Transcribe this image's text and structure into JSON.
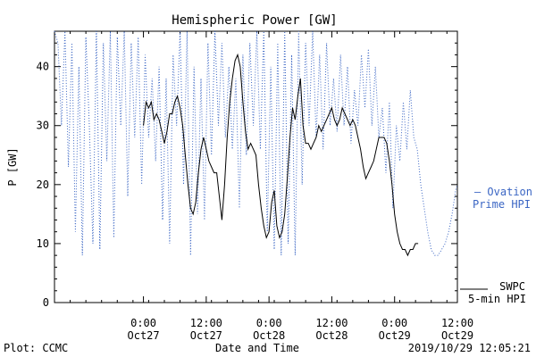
{
  "chart_data": {
    "type": "line",
    "title": "Hemispheric Power [GW]",
    "ylabel": "P [GW]",
    "xlabel": "Date and Time",
    "ylim": [
      0,
      46
    ],
    "xlim": [
      "2019-10-26 07:00",
      "2019-10-29 12:00"
    ],
    "y_ticks": [
      0,
      10,
      20,
      30,
      40
    ],
    "x_ticks": [
      {
        "t": "2019-10-27 00:00",
        "line1": "0:00",
        "line2": "Oct27"
      },
      {
        "t": "2019-10-27 12:00",
        "line1": "12:00",
        "line2": "Oct27"
      },
      {
        "t": "2019-10-28 00:00",
        "line1": "0:00",
        "line2": "Oct28"
      },
      {
        "t": "2019-10-28 12:00",
        "line1": "12:00",
        "line2": "Oct28"
      },
      {
        "t": "2019-10-29 00:00",
        "line1": "0:00",
        "line2": "Oct29"
      },
      {
        "t": "2019-10-29 12:00",
        "line1": "12:00",
        "line2": "Oct29"
      }
    ],
    "grid": false,
    "legend_placement": "right",
    "series": [
      {
        "name": "Ovation Prime HPI",
        "legend_line1": "— Ovation",
        "legend_line2": "Prime HPI",
        "style": "dotted",
        "color": "#3b66c4",
        "points": [
          [
            "2019-10-26 07:00",
            46
          ],
          [
            "2019-10-26 07:40",
            44
          ],
          [
            "2019-10-26 08:20",
            30
          ],
          [
            "2019-10-26 09:00",
            46
          ],
          [
            "2019-10-26 09:40",
            23
          ],
          [
            "2019-10-26 10:20",
            44
          ],
          [
            "2019-10-26 11:00",
            12
          ],
          [
            "2019-10-26 11:40",
            40
          ],
          [
            "2019-10-26 12:20",
            8
          ],
          [
            "2019-10-26 13:00",
            45
          ],
          [
            "2019-10-26 13:40",
            30
          ],
          [
            "2019-10-26 14:20",
            10
          ],
          [
            "2019-10-26 15:00",
            46
          ],
          [
            "2019-10-26 15:40",
            9
          ],
          [
            "2019-10-26 16:20",
            44
          ],
          [
            "2019-10-26 17:00",
            24
          ],
          [
            "2019-10-26 17:40",
            46
          ],
          [
            "2019-10-26 18:20",
            11
          ],
          [
            "2019-10-26 19:00",
            45
          ],
          [
            "2019-10-26 19:40",
            30
          ],
          [
            "2019-10-26 20:20",
            46
          ],
          [
            "2019-10-26 21:00",
            18
          ],
          [
            "2019-10-26 21:40",
            44
          ],
          [
            "2019-10-26 22:20",
            28
          ],
          [
            "2019-10-26 23:00",
            45
          ],
          [
            "2019-10-26 23:40",
            20
          ],
          [
            "2019-10-27 00:20",
            42
          ],
          [
            "2019-10-27 01:00",
            28
          ],
          [
            "2019-10-27 01:40",
            38
          ],
          [
            "2019-10-27 02:20",
            24
          ],
          [
            "2019-10-27 03:00",
            40
          ],
          [
            "2019-10-27 03:40",
            14
          ],
          [
            "2019-10-27 04:20",
            38
          ],
          [
            "2019-10-27 05:00",
            10
          ],
          [
            "2019-10-27 05:40",
            42
          ],
          [
            "2019-10-27 06:20",
            30
          ],
          [
            "2019-10-27 07:00",
            46
          ],
          [
            "2019-10-27 07:40",
            20
          ],
          [
            "2019-10-27 08:20",
            46
          ],
          [
            "2019-10-27 09:00",
            8
          ],
          [
            "2019-10-27 09:40",
            40
          ],
          [
            "2019-10-27 10:20",
            15
          ],
          [
            "2019-10-27 11:00",
            38
          ],
          [
            "2019-10-27 11:40",
            14
          ],
          [
            "2019-10-27 12:20",
            44
          ],
          [
            "2019-10-27 13:00",
            25
          ],
          [
            "2019-10-27 13:40",
            46
          ],
          [
            "2019-10-27 14:20",
            30
          ],
          [
            "2019-10-27 15:00",
            44
          ],
          [
            "2019-10-27 15:40",
            28
          ],
          [
            "2019-10-27 16:20",
            40
          ],
          [
            "2019-10-27 17:00",
            26
          ],
          [
            "2019-10-27 17:40",
            38
          ],
          [
            "2019-10-27 18:20",
            16
          ],
          [
            "2019-10-27 19:00",
            42
          ],
          [
            "2019-10-27 19:40",
            25
          ],
          [
            "2019-10-27 20:20",
            44
          ],
          [
            "2019-10-27 21:00",
            30
          ],
          [
            "2019-10-27 21:40",
            46
          ],
          [
            "2019-10-27 22:20",
            26
          ],
          [
            "2019-10-27 23:00",
            46
          ],
          [
            "2019-10-27 23:40",
            12
          ],
          [
            "2019-10-28 00:20",
            40
          ],
          [
            "2019-10-28 01:00",
            9
          ],
          [
            "2019-10-28 01:40",
            44
          ],
          [
            "2019-10-28 02:20",
            8
          ],
          [
            "2019-10-28 03:00",
            46
          ],
          [
            "2019-10-28 03:40",
            10
          ],
          [
            "2019-10-28 04:20",
            42
          ],
          [
            "2019-10-28 05:00",
            8
          ],
          [
            "2019-10-28 05:40",
            46
          ],
          [
            "2019-10-28 06:20",
            20
          ],
          [
            "2019-10-28 07:00",
            44
          ],
          [
            "2019-10-28 07:40",
            30
          ],
          [
            "2019-10-28 08:20",
            46
          ],
          [
            "2019-10-28 09:00",
            28
          ],
          [
            "2019-10-28 09:40",
            42
          ],
          [
            "2019-10-28 10:20",
            26
          ],
          [
            "2019-10-28 11:00",
            44
          ],
          [
            "2019-10-28 11:40",
            30
          ],
          [
            "2019-10-28 12:20",
            38
          ],
          [
            "2019-10-28 13:00",
            29
          ],
          [
            "2019-10-28 13:40",
            42
          ],
          [
            "2019-10-28 14:20",
            30
          ],
          [
            "2019-10-28 15:00",
            40
          ],
          [
            "2019-10-28 15:40",
            27
          ],
          [
            "2019-10-28 16:20",
            36
          ],
          [
            "2019-10-28 17:00",
            30
          ],
          [
            "2019-10-28 17:40",
            42
          ],
          [
            "2019-10-28 18:20",
            33
          ],
          [
            "2019-10-28 19:00",
            43
          ],
          [
            "2019-10-28 19:40",
            30
          ],
          [
            "2019-10-28 20:20",
            40
          ],
          [
            "2019-10-28 21:00",
            28
          ],
          [
            "2019-10-28 21:40",
            33
          ],
          [
            "2019-10-28 22:20",
            22
          ],
          [
            "2019-10-28 23:00",
            34
          ],
          [
            "2019-10-28 23:40",
            16
          ],
          [
            "2019-10-29 00:20",
            30
          ],
          [
            "2019-10-29 01:00",
            24
          ],
          [
            "2019-10-29 01:40",
            34
          ],
          [
            "2019-10-29 02:20",
            26
          ],
          [
            "2019-10-29 03:00",
            36
          ],
          [
            "2019-10-29 03:40",
            28
          ],
          [
            "2019-10-29 04:20",
            26
          ],
          [
            "2019-10-29 05:00",
            20
          ],
          [
            "2019-10-29 05:40",
            16
          ],
          [
            "2019-10-29 06:20",
            12
          ],
          [
            "2019-10-29 07:00",
            9
          ],
          [
            "2019-10-29 07:40",
            8
          ],
          [
            "2019-10-29 08:20",
            8
          ],
          [
            "2019-10-29 09:00",
            9
          ],
          [
            "2019-10-29 09:40",
            10
          ],
          [
            "2019-10-29 10:20",
            12
          ],
          [
            "2019-10-29 11:00",
            15
          ],
          [
            "2019-10-29 11:40",
            19
          ],
          [
            "2019-10-29 12:00",
            20
          ]
        ]
      },
      {
        "name": "SWPC 5-min HPI",
        "legend_line1": "SWPC",
        "legend_line2": "5-min HPI",
        "style": "solid",
        "color": "#000000",
        "points": [
          [
            "2019-10-27 00:00",
            30
          ],
          [
            "2019-10-27 00:30",
            34
          ],
          [
            "2019-10-27 01:00",
            33
          ],
          [
            "2019-10-27 01:30",
            34
          ],
          [
            "2019-10-27 02:00",
            31
          ],
          [
            "2019-10-27 02:30",
            32
          ],
          [
            "2019-10-27 03:00",
            31
          ],
          [
            "2019-10-27 03:30",
            29
          ],
          [
            "2019-10-27 04:00",
            27
          ],
          [
            "2019-10-27 04:30",
            29
          ],
          [
            "2019-10-27 05:00",
            32
          ],
          [
            "2019-10-27 05:30",
            32
          ],
          [
            "2019-10-27 06:00",
            34
          ],
          [
            "2019-10-27 06:30",
            35
          ],
          [
            "2019-10-27 07:00",
            33
          ],
          [
            "2019-10-27 07:30",
            30
          ],
          [
            "2019-10-27 08:00",
            25
          ],
          [
            "2019-10-27 08:30",
            20
          ],
          [
            "2019-10-27 09:00",
            16
          ],
          [
            "2019-10-27 09:30",
            15
          ],
          [
            "2019-10-27 10:00",
            17
          ],
          [
            "2019-10-27 10:30",
            22
          ],
          [
            "2019-10-27 11:00",
            26
          ],
          [
            "2019-10-27 11:30",
            28
          ],
          [
            "2019-10-27 12:00",
            26
          ],
          [
            "2019-10-27 12:30",
            24
          ],
          [
            "2019-10-27 13:00",
            23
          ],
          [
            "2019-10-27 13:30",
            22
          ],
          [
            "2019-10-27 14:00",
            22
          ],
          [
            "2019-10-27 14:30",
            18
          ],
          [
            "2019-10-27 15:00",
            14
          ],
          [
            "2019-10-27 15:30",
            20
          ],
          [
            "2019-10-27 16:00",
            28
          ],
          [
            "2019-10-27 16:30",
            34
          ],
          [
            "2019-10-27 17:00",
            38
          ],
          [
            "2019-10-27 17:30",
            41
          ],
          [
            "2019-10-27 18:00",
            42
          ],
          [
            "2019-10-27 18:30",
            40
          ],
          [
            "2019-10-27 19:00",
            34
          ],
          [
            "2019-10-27 19:30",
            29
          ],
          [
            "2019-10-27 20:00",
            26
          ],
          [
            "2019-10-27 20:30",
            27
          ],
          [
            "2019-10-27 21:00",
            26
          ],
          [
            "2019-10-27 21:30",
            25
          ],
          [
            "2019-10-27 22:00",
            20
          ],
          [
            "2019-10-27 22:30",
            16
          ],
          [
            "2019-10-27 23:00",
            13
          ],
          [
            "2019-10-27 23:30",
            11
          ],
          [
            "2019-10-28 00:00",
            12
          ],
          [
            "2019-10-28 00:30",
            17
          ],
          [
            "2019-10-28 01:00",
            19
          ],
          [
            "2019-10-28 01:30",
            13
          ],
          [
            "2019-10-28 02:00",
            11
          ],
          [
            "2019-10-28 02:30",
            12
          ],
          [
            "2019-10-28 03:00",
            15
          ],
          [
            "2019-10-28 03:30",
            21
          ],
          [
            "2019-10-28 04:00",
            28
          ],
          [
            "2019-10-28 04:30",
            33
          ],
          [
            "2019-10-28 05:00",
            31
          ],
          [
            "2019-10-28 05:30",
            35
          ],
          [
            "2019-10-28 06:00",
            38
          ],
          [
            "2019-10-28 06:30",
            30
          ],
          [
            "2019-10-28 07:00",
            27
          ],
          [
            "2019-10-28 07:30",
            27
          ],
          [
            "2019-10-28 08:00",
            26
          ],
          [
            "2019-10-28 08:30",
            27
          ],
          [
            "2019-10-28 09:00",
            28
          ],
          [
            "2019-10-28 09:30",
            30
          ],
          [
            "2019-10-28 10:00",
            29
          ],
          [
            "2019-10-28 10:30",
            30
          ],
          [
            "2019-10-28 11:00",
            31
          ],
          [
            "2019-10-28 11:30",
            32
          ],
          [
            "2019-10-28 12:00",
            33
          ],
          [
            "2019-10-28 12:30",
            31
          ],
          [
            "2019-10-28 13:00",
            30
          ],
          [
            "2019-10-28 13:30",
            31
          ],
          [
            "2019-10-28 14:00",
            33
          ],
          [
            "2019-10-28 14:30",
            32
          ],
          [
            "2019-10-28 15:00",
            31
          ],
          [
            "2019-10-28 15:30",
            30
          ],
          [
            "2019-10-28 16:00",
            31
          ],
          [
            "2019-10-28 16:30",
            30
          ],
          [
            "2019-10-28 17:00",
            28
          ],
          [
            "2019-10-28 17:30",
            26
          ],
          [
            "2019-10-28 18:00",
            23
          ],
          [
            "2019-10-28 18:30",
            21
          ],
          [
            "2019-10-28 19:00",
            22
          ],
          [
            "2019-10-28 19:30",
            23
          ],
          [
            "2019-10-28 20:00",
            24
          ],
          [
            "2019-10-28 20:30",
            26
          ],
          [
            "2019-10-28 21:00",
            28
          ],
          [
            "2019-10-28 21:30",
            28
          ],
          [
            "2019-10-28 22:00",
            28
          ],
          [
            "2019-10-28 22:30",
            27
          ],
          [
            "2019-10-28 23:00",
            24
          ],
          [
            "2019-10-28 23:30",
            20
          ],
          [
            "2019-10-29 00:00",
            15
          ],
          [
            "2019-10-29 00:30",
            12
          ],
          [
            "2019-10-29 01:00",
            10
          ],
          [
            "2019-10-29 01:30",
            9
          ],
          [
            "2019-10-29 02:00",
            9
          ],
          [
            "2019-10-29 02:30",
            8
          ],
          [
            "2019-10-29 03:00",
            9
          ],
          [
            "2019-10-29 03:30",
            9
          ],
          [
            "2019-10-29 04:00",
            10
          ],
          [
            "2019-10-29 04:30",
            10
          ]
        ]
      }
    ]
  },
  "footer": {
    "plot_credit": "Plot: CCMC",
    "timestamp": "2019/10/29 12:05:21"
  }
}
